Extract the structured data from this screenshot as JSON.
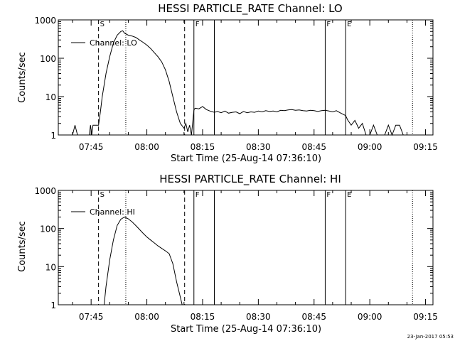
{
  "stamp": "23-Jan-2017 05:53",
  "chart_data": [
    {
      "type": "line",
      "title": "HESSI PARTICLE_RATE Channel: LO",
      "xlabel": "Start Time (25-Aug-14 07:36:10)",
      "ylabel": "Counts/sec",
      "yscale": "log",
      "ylim": [
        1,
        1000
      ],
      "yticks": [
        "1",
        "10",
        "100",
        "1000"
      ],
      "xlim": [
        "07:36:10",
        "09:17:00"
      ],
      "xticks": [
        "07:45",
        "08:00",
        "08:15",
        "08:30",
        "08:45",
        "09:00",
        "09:15"
      ],
      "legend": "Channel: LO",
      "markers": [
        {
          "time": "07:47:00",
          "style": "dashed",
          "label": "S"
        },
        {
          "time": "07:54:20",
          "style": "dotted",
          "label": ""
        },
        {
          "time": "08:10:10",
          "style": "dashed",
          "label": ""
        },
        {
          "time": "08:12:40",
          "style": "solid",
          "label": "F"
        },
        {
          "time": "08:18:10",
          "style": "solid",
          "label": ""
        },
        {
          "time": "08:48:00",
          "style": "solid",
          "label": "F"
        },
        {
          "time": "08:53:30",
          "style": "solid",
          "label": "E"
        },
        {
          "time": "09:11:30",
          "style": "dotted",
          "label": ""
        }
      ],
      "series": [
        {
          "name": "Channel: LO",
          "x": [
            "07:40:00",
            "07:40:40",
            "07:41:20",
            "07:44:30",
            "07:44:50",
            "07:45:10",
            "07:45:30",
            "07:47:00",
            "07:47:30",
            "07:48:00",
            "07:49:00",
            "07:50:00",
            "07:51:00",
            "07:52:00",
            "07:53:00",
            "07:53:30",
            "07:54:00",
            "07:55:00",
            "07:56:00",
            "07:57:00",
            "07:58:00",
            "07:59:00",
            "08:00:00",
            "08:01:00",
            "08:02:00",
            "08:03:00",
            "08:04:00",
            "08:05:00",
            "08:06:00",
            "08:07:00",
            "08:08:00",
            "08:09:00",
            "08:10:00",
            "08:10:30",
            "08:11:00",
            "08:11:30",
            "08:12:00",
            "08:12:40",
            "08:13:00",
            "08:14:00",
            "08:15:00",
            "08:16:00",
            "08:17:00",
            "08:18:10",
            "08:19:00",
            "08:20:00",
            "08:21:00",
            "08:22:00",
            "08:23:00",
            "08:24:00",
            "08:25:00",
            "08:26:00",
            "08:27:00",
            "08:28:00",
            "08:29:00",
            "08:30:00",
            "08:31:00",
            "08:32:00",
            "08:33:00",
            "08:34:00",
            "08:35:00",
            "08:36:00",
            "08:37:00",
            "08:38:00",
            "08:39:00",
            "08:40:00",
            "08:41:00",
            "08:42:00",
            "08:43:00",
            "08:44:00",
            "08:45:00",
            "08:46:00",
            "08:47:00",
            "08:48:00",
            "08:49:00",
            "08:50:00",
            "08:51:00",
            "08:52:00",
            "08:53:30",
            "08:54:00",
            "08:55:00",
            "08:56:00",
            "08:57:00",
            "08:58:00",
            "08:59:00",
            "09:00:00",
            "09:01:00",
            "09:02:00",
            "09:04:00",
            "09:05:00",
            "09:06:00",
            "09:07:00",
            "09:08:00",
            "09:09:00"
          ],
          "y": [
            1,
            1.8,
            1,
            1,
            1.8,
            1,
            1.8,
            1.8,
            4,
            10,
            40,
            110,
            250,
            400,
            500,
            520,
            450,
            400,
            380,
            350,
            300,
            260,
            220,
            180,
            140,
            110,
            80,
            50,
            25,
            10,
            4,
            2,
            1.5,
            2,
            1.2,
            1.8,
            1,
            4.5,
            5,
            4.8,
            5.5,
            4.6,
            4.2,
            3.9,
            4.1,
            3.8,
            4.2,
            3.7,
            3.9,
            4,
            3.6,
            4.1,
            3.8,
            4,
            3.9,
            4.2,
            4,
            4.3,
            4.1,
            4.2,
            4,
            4.4,
            4.3,
            4.5,
            4.6,
            4.4,
            4.5,
            4.3,
            4.2,
            4.4,
            4.3,
            4.1,
            4.3,
            4.4,
            4.2,
            4,
            4.3,
            3.8,
            3.2,
            2.5,
            1.8,
            2.4,
            1.5,
            2,
            1,
            1,
            1.8,
            1,
            1,
            1.8,
            1,
            1.8,
            1.8,
            1
          ]
        }
      ]
    },
    {
      "type": "line",
      "title": "HESSI PARTICLE_RATE Channel: HI",
      "xlabel": "Start Time (25-Aug-14 07:36:10)",
      "ylabel": "Counts/sec",
      "yscale": "log",
      "ylim": [
        1,
        1000
      ],
      "yticks": [
        "1",
        "10",
        "100",
        "1000"
      ],
      "xlim": [
        "07:36:10",
        "09:17:00"
      ],
      "xticks": [
        "07:45",
        "08:00",
        "08:15",
        "08:30",
        "08:45",
        "09:00",
        "09:15"
      ],
      "legend": "Channel: HI",
      "markers": [
        {
          "time": "07:47:00",
          "style": "dashed",
          "label": "S"
        },
        {
          "time": "07:54:20",
          "style": "dotted",
          "label": ""
        },
        {
          "time": "08:10:10",
          "style": "dashed",
          "label": ""
        },
        {
          "time": "08:12:40",
          "style": "solid",
          "label": "F"
        },
        {
          "time": "08:18:10",
          "style": "solid",
          "label": ""
        },
        {
          "time": "08:48:00",
          "style": "solid",
          "label": "F"
        },
        {
          "time": "08:53:30",
          "style": "solid",
          "label": "E"
        },
        {
          "time": "09:11:30",
          "style": "dotted",
          "label": ""
        }
      ],
      "series": [
        {
          "name": "Channel: HI",
          "x": [
            "07:48:30",
            "07:49:00",
            "07:50:00",
            "07:51:00",
            "07:52:00",
            "07:53:00",
            "07:54:00",
            "07:55:00",
            "07:56:00",
            "07:57:00",
            "07:58:00",
            "07:59:00",
            "08:00:00",
            "08:01:00",
            "08:02:00",
            "08:03:00",
            "08:04:00",
            "08:05:00",
            "08:06:00",
            "08:07:00",
            "08:08:00",
            "08:09:00",
            "08:09:30"
          ],
          "y": [
            1,
            3,
            15,
            50,
            120,
            175,
            200,
            180,
            150,
            120,
            95,
            75,
            60,
            50,
            42,
            35,
            30,
            26,
            22,
            12,
            4,
            1.6,
            1
          ]
        }
      ]
    }
  ]
}
